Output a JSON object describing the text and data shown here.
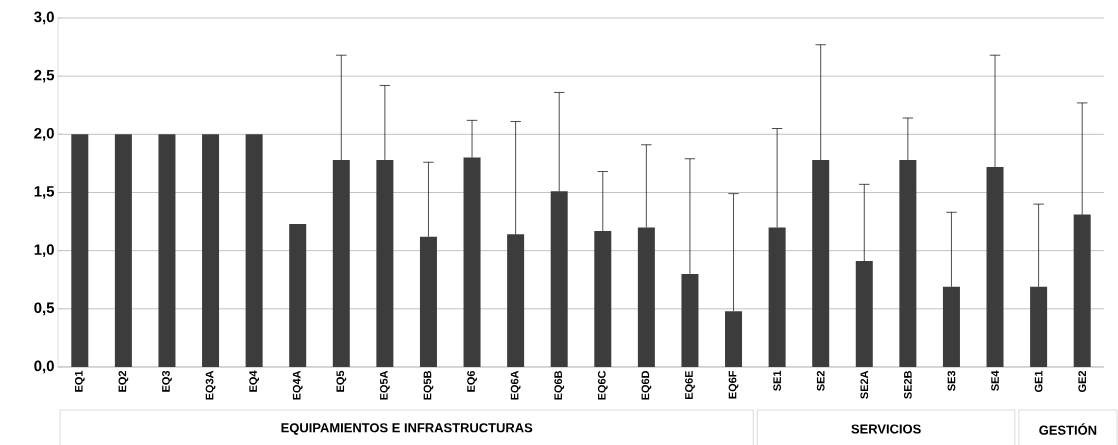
{
  "chart_data": {
    "type": "bar",
    "categories": [
      "EQ1",
      "EQ2",
      "EQ3",
      "EQ3A",
      "EQ4",
      "EQ4A",
      "EQ5",
      "EQ5A",
      "EQ5B",
      "EQ6",
      "EQ6A",
      "EQ6B",
      "EQ6C",
      "EQ6D",
      "EQ6E",
      "EQ6F",
      "SE1",
      "SE2",
      "SE2A",
      "SE2B",
      "SE3",
      "SE4",
      "GE1",
      "GE2"
    ],
    "values": [
      2.0,
      2.0,
      2.0,
      2.0,
      2.0,
      1.23,
      1.78,
      1.78,
      1.12,
      1.8,
      1.14,
      1.51,
      1.17,
      1.2,
      0.8,
      0.48,
      1.2,
      1.78,
      0.91,
      1.78,
      0.69,
      1.72,
      0.69,
      1.31
    ],
    "errors": [
      null,
      null,
      null,
      null,
      null,
      null,
      [
        1.78,
        2.68
      ],
      [
        1.78,
        2.42
      ],
      [
        1.12,
        1.76
      ],
      [
        1.8,
        2.12
      ],
      [
        1.14,
        2.11
      ],
      [
        1.51,
        2.36
      ],
      [
        1.17,
        1.68
      ],
      [
        1.2,
        1.91
      ],
      [
        0.8,
        1.79
      ],
      [
        0.48,
        1.49
      ],
      [
        1.2,
        2.05
      ],
      [
        1.78,
        2.77
      ],
      [
        0.91,
        1.57
      ],
      [
        1.78,
        2.14
      ],
      [
        0.69,
        1.33
      ],
      [
        1.72,
        2.68
      ],
      [
        0.69,
        1.4
      ],
      [
        1.31,
        2.27
      ]
    ],
    "color": "#3c3c3c",
    "ylim": [
      0,
      3
    ],
    "yticks": [
      {
        "value": 0,
        "label": "0,0"
      },
      {
        "value": 0.5,
        "label": "0,5"
      },
      {
        "value": 1,
        "label": "1,0"
      },
      {
        "value": 1.5,
        "label": "1,5"
      },
      {
        "value": 2,
        "label": "2,0"
      },
      {
        "value": 2.5,
        "label": "2,5"
      },
      {
        "value": 3,
        "label": "3,0"
      }
    ],
    "grid": "y",
    "annotations": [
      "EQUIPAMIENTOS E INFRASTRUCTURAS",
      "SERVICIOS",
      "GESTIÓN"
    ]
  }
}
